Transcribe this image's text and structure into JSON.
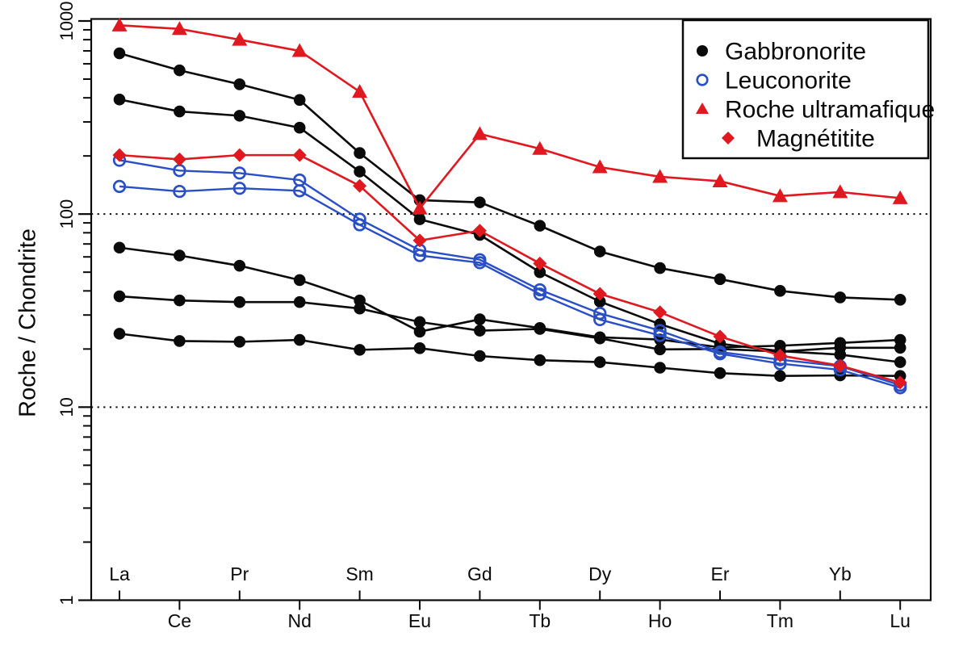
{
  "figure": {
    "background": "#ffffff",
    "title": ""
  },
  "colors": {
    "black": "#0a0a0a",
    "blue": "#2a4fc5",
    "red": "#e0181f",
    "background": "#ffffff"
  },
  "chart_data": {
    "type": "line",
    "title": "",
    "xlabel": "",
    "ylabel": "Roche / Chondrite",
    "y_scale": "log",
    "ylim": [
      1,
      1000
    ],
    "y_ticks": [
      1,
      10,
      100,
      1000
    ],
    "y_tick_labels": [
      "1",
      "10",
      "100",
      "1000"
    ],
    "y_minor_ticks_per_decade": [
      2,
      3,
      4,
      5,
      6,
      7,
      8,
      9
    ],
    "dotted_gridlines": [
      10,
      100
    ],
    "grid": "dotted horizontal lines at 10 and 100 only",
    "categories": [
      "La",
      "Ce",
      "Pr",
      "Nd",
      "Sm",
      "Eu",
      "Gd",
      "Tb",
      "Dy",
      "Ho",
      "Er",
      "Tm",
      "Yb",
      "Lu"
    ],
    "x_label_layout": "alternating: La Pr Sm Gd Dy Er Yb above axis, Ce Nd Eu Tb Ho Tm Lu below axis",
    "legend": {
      "position": "top-right",
      "border": true,
      "entries": [
        {
          "label": "Gabbronorite",
          "marker": "circle-filled",
          "color": "#0a0a0a",
          "indent": false
        },
        {
          "label": "Leuconorite",
          "marker": "circle-open",
          "color": "#2a4fc5",
          "indent": false
        },
        {
          "label": "Roche ultramafique",
          "marker": "triangle-filled",
          "color": "#e0181f",
          "indent": false
        },
        {
          "label": "Magnétitite",
          "marker": "diamond-filled",
          "color": "#e0181f",
          "indent": true
        }
      ]
    },
    "series": [
      {
        "name": "Gabbronorite",
        "sample": "1",
        "color": "#0a0a0a",
        "marker": "circle-filled",
        "values": [
          680,
          555,
          470,
          390,
          207,
          118,
          115,
          87,
          64,
          52.5,
          46,
          40,
          37,
          36
        ]
      },
      {
        "name": "Gabbronorite",
        "sample": "2",
        "color": "#0a0a0a",
        "marker": "circle-filled",
        "values": [
          392,
          340,
          323,
          280,
          166,
          94,
          78,
          50,
          35.2,
          26.9,
          21.3,
          19.5,
          18.7,
          17.1
        ]
      },
      {
        "name": "Gabbronorite",
        "sample": "3",
        "color": "#0a0a0a",
        "marker": "circle-filled",
        "values": [
          67,
          61,
          54,
          45.5,
          35.7,
          24.6,
          28.5,
          25.7,
          23,
          22.4,
          20.4,
          20.8,
          21.5,
          22.3
        ]
      },
      {
        "name": "Gabbronorite",
        "sample": "4",
        "color": "#0a0a0a",
        "marker": "circle-filled",
        "values": [
          37.5,
          35.7,
          35,
          35,
          32.4,
          27.6,
          24.9,
          25.4,
          22.7,
          19.9,
          20,
          19.4,
          20.3,
          20.3
        ]
      },
      {
        "name": "Gabbronorite",
        "sample": "5",
        "color": "#0a0a0a",
        "marker": "circle-filled",
        "values": [
          24,
          22,
          21.8,
          22.3,
          19.8,
          20.2,
          18.4,
          17.5,
          17.1,
          16,
          15,
          14.5,
          14.6,
          14.5
        ]
      },
      {
        "name": "Leuconorite",
        "sample": "1",
        "color": "#2a4fc5",
        "marker": "circle-open",
        "values": [
          190,
          168,
          163,
          150,
          94,
          65,
          58,
          40.5,
          30.6,
          24.9,
          19.3,
          17.6,
          16.3,
          13
        ]
      },
      {
        "name": "Leuconorite",
        "sample": "2",
        "color": "#2a4fc5",
        "marker": "circle-open",
        "values": [
          139,
          131,
          136,
          132,
          88,
          61,
          56,
          38.5,
          28.4,
          23.5,
          18.9,
          16.8,
          15.6,
          12.6
        ]
      },
      {
        "name": "Roche ultramafique",
        "sample": "1",
        "color": "#e0181f",
        "marker": "triangle-filled",
        "values": [
          950,
          910,
          800,
          700,
          430,
          107,
          260,
          218,
          175,
          156,
          148,
          124,
          130,
          121
        ]
      },
      {
        "name": "Magnétitite",
        "sample": "1",
        "color": "#e0181f",
        "marker": "diamond-filled",
        "values": [
          202,
          192,
          202,
          202,
          140,
          73,
          82,
          55.5,
          38.6,
          31,
          23.2,
          18.5,
          16.4,
          13.4
        ]
      }
    ]
  }
}
